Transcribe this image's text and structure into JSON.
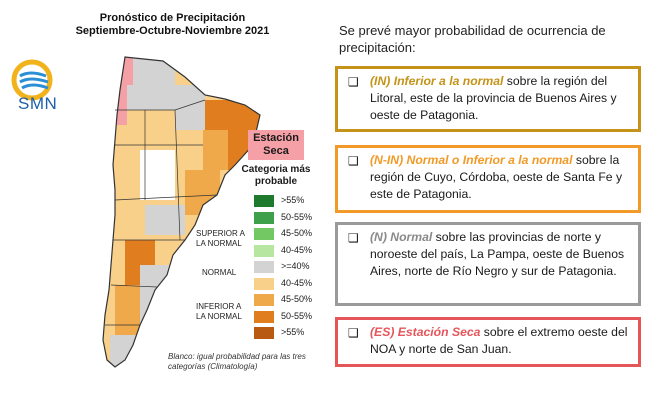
{
  "title_line1": "Pronóstico de Precipitación",
  "title_line2": "Septiembre-Octubre-Noviembre 2021",
  "logo_text": "SMN",
  "estacion_seca": "Estación Seca",
  "legend_title": "Categoria más probable",
  "legend": [
    {
      "label": ">55%",
      "color": "#1f7a2e"
    },
    {
      "label": "50-55%",
      "color": "#3ea04a"
    },
    {
      "label": "45-50%",
      "color": "#74c864"
    },
    {
      "label": "40-45%",
      "color": "#b6e6a0"
    },
    {
      "label": ">=40%",
      "color": "#d3d3d3"
    },
    {
      "label": "40-45%",
      "color": "#f8d08a"
    },
    {
      "label": "45-50%",
      "color": "#f0a94a"
    },
    {
      "label": "50-55%",
      "color": "#e07d1e"
    },
    {
      "label": ">55%",
      "color": "#b85a12"
    }
  ],
  "group_superior": "SUPERIOR A LA NORMAL",
  "group_normal": "NORMAL",
  "group_inferior": "INFERIOR A LA NORMAL",
  "footnote": "Blanco: igual probabilidad para las tres categorías (Climatología)",
  "intro": "Se prevé mayor probabilidad de ocurrencia de precipitación:",
  "boxes": [
    {
      "tag": "(IN) Inferior a la normal",
      "text": " sobre la región del Litoral, este de la provincia de Buenos Aires y oeste de Patagonia."
    },
    {
      "tag": "(N-IN) Normal o Inferior a la normal",
      "text": " sobre la región de Cuyo, Córdoba, oeste de Santa Fe y este de Patagonia."
    },
    {
      "tag": "(N) Normal",
      "text": "  sobre las provincias de norte y noroeste del país, La Pampa, oeste de Buenos Aires, norte de Río Negro y sur de Patagonia."
    },
    {
      "tag": "(ES) Estación Seca",
      "text": " sobre el extremo oeste del NOA y norte de San Juan."
    }
  ],
  "colors": {
    "in": "#c49317",
    "nin": "#f19a27",
    "n": "#9a9a9a",
    "es": "#e5565b"
  }
}
